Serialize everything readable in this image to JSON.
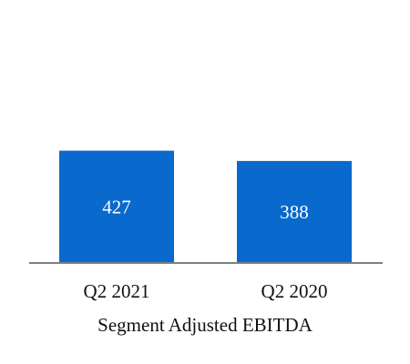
{
  "chart_data": {
    "type": "bar",
    "title": "Segment Adjusted EBITDA",
    "xlabel": "",
    "ylabel": "",
    "categories": [
      "Q2 2021",
      "Q2 2020"
    ],
    "values": [
      427,
      388
    ],
    "value_labels": [
      "427",
      "388"
    ],
    "ylim": [
      0,
      1000
    ],
    "grid": false,
    "legend": "none",
    "colors": {
      "bar": "#0969CD",
      "axis": "#7f7f7f",
      "bar_text": "#ffffff",
      "text": "#111111"
    }
  }
}
